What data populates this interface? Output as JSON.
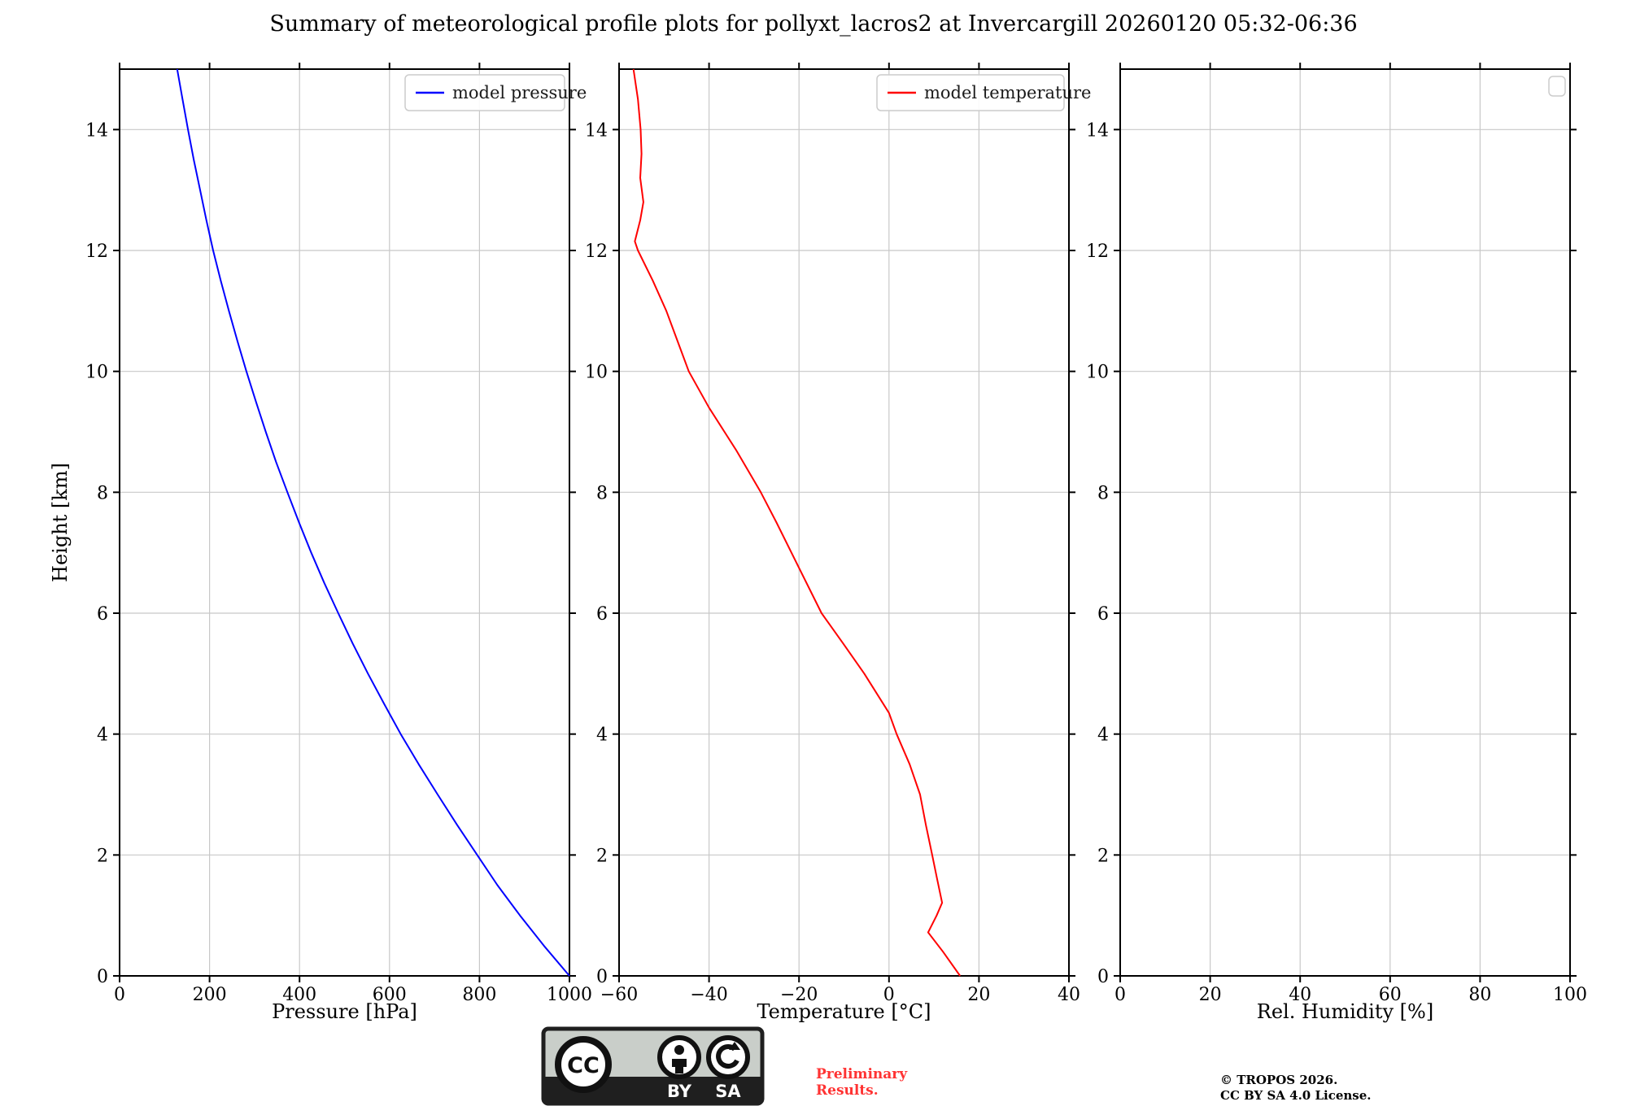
{
  "title": "Summary of meteorological profile plots for pollyxt_lacros2 at Invercargill 20260120 05:32-06:36",
  "colors": {
    "pressure_line": "#0000ff",
    "temperature_line": "#ff0000",
    "grid": "#c8c8c8",
    "spine": "#000000",
    "legend_border": "#cccccc",
    "preliminary_text": "#ff3333",
    "badge_bg": "#c9cec9",
    "badge_dark": "#1f1f1f"
  },
  "shared_ylabel": "Height [km]",
  "chart_data": [
    {
      "type": "line",
      "panel_name": "pressure-panel",
      "xlabel": "Pressure [hPa]",
      "ylabel": "Height [km]",
      "xlim": [
        0,
        1000
      ],
      "ylim": [
        0,
        15
      ],
      "xticks": [
        0,
        200,
        400,
        600,
        800,
        1000
      ],
      "xtick_labels": [
        "0",
        "200",
        "400",
        "600",
        "800",
        "1000"
      ],
      "yticks": [
        0,
        2,
        4,
        6,
        8,
        10,
        12,
        14
      ],
      "ytick_labels": [
        "0",
        "2",
        "4",
        "6",
        "8",
        "10",
        "12",
        "14"
      ],
      "grid": true,
      "legend": "model pressure",
      "legend_position": "upper right",
      "line_color": "#0000ff",
      "series": [
        {
          "name": "model pressure",
          "x_units": "hPa",
          "y_units": "km",
          "y": [
            0,
            0.5,
            1,
            1.5,
            2,
            2.5,
            3,
            3.5,
            4,
            4.5,
            5,
            5.5,
            6,
            6.5,
            7,
            7.5,
            8,
            8.5,
            9,
            9.5,
            10,
            10.5,
            11,
            11.5,
            12,
            12.5,
            13,
            13.5,
            14,
            14.5,
            15
          ],
          "x": [
            1000,
            943,
            890,
            840,
            795,
            750,
            707,
            665,
            625,
            588,
            552,
            518,
            486,
            455,
            426,
            399,
            373,
            348,
            325,
            303,
            282,
            262,
            243,
            225,
            208,
            193,
            179,
            165,
            152,
            140,
            128
          ]
        }
      ]
    },
    {
      "type": "line",
      "panel_name": "temperature-panel",
      "xlabel": "Temperature [°C]",
      "ylabel": "Height [km]",
      "xlim": [
        -60,
        40
      ],
      "ylim": [
        0,
        15
      ],
      "xticks": [
        -60,
        -40,
        -20,
        0,
        20,
        40
      ],
      "xtick_labels": [
        "−60",
        "−40",
        "−20",
        "0",
        "20",
        "40"
      ],
      "yticks": [
        0,
        2,
        4,
        6,
        8,
        10,
        12,
        14
      ],
      "ytick_labels": [
        "0",
        "2",
        "4",
        "6",
        "8",
        "10",
        "12",
        "14"
      ],
      "grid": true,
      "legend": "model temperature",
      "legend_position": "upper right",
      "line_color": "#ff0000",
      "series": [
        {
          "name": "model temperature",
          "x_units": "degC",
          "y_units": "km",
          "y": [
            0,
            0.4,
            0.72,
            1.0,
            1.21,
            1.6,
            2,
            2.5,
            3,
            3.5,
            4,
            4.35,
            5,
            5.5,
            6,
            6.75,
            7.5,
            8,
            8.7,
            9.4,
            10,
            10.5,
            11,
            11.5,
            12,
            12.15,
            12.5,
            12.8,
            13.2,
            13.6,
            14,
            14.5,
            15
          ],
          "x": [
            15.8,
            12.0,
            8.7,
            10.6,
            11.8,
            10.7,
            9.6,
            8.2,
            6.9,
            4.6,
            1.7,
            0.0,
            -5.5,
            -10.2,
            -15.0,
            -20.0,
            -25.0,
            -28.5,
            -34.0,
            -40.0,
            -44.5,
            -47.0,
            -49.5,
            -52.5,
            -55.8,
            -56.5,
            -55.3,
            -54.6,
            -55.3,
            -55.0,
            -55.2,
            -55.8,
            -56.8
          ]
        }
      ]
    },
    {
      "type": "line",
      "panel_name": "humidity-panel",
      "xlabel": "Rel. Humidity [%]",
      "ylabel": "Height [km]",
      "xlim": [
        0,
        100
      ],
      "ylim": [
        0,
        15
      ],
      "xticks": [
        0,
        20,
        40,
        60,
        80,
        100
      ],
      "xtick_labels": [
        "0",
        "20",
        "40",
        "60",
        "80",
        "100"
      ],
      "yticks": [
        0,
        2,
        4,
        6,
        8,
        10,
        12,
        14
      ],
      "ytick_labels": [
        "0",
        "2",
        "4",
        "6",
        "8",
        "10",
        "12",
        "14"
      ],
      "grid": true,
      "legend": null,
      "legend_position": "upper right",
      "line_color": null,
      "series": []
    }
  ],
  "footer": {
    "badge_by": "BY",
    "badge_sa": "SA",
    "badge_cc": "CC",
    "preliminary_line1": "Preliminary",
    "preliminary_line2": "Results.",
    "copyright_line1": "© TROPOS 2026.",
    "copyright_line2": "CC BY SA 4.0 License."
  }
}
